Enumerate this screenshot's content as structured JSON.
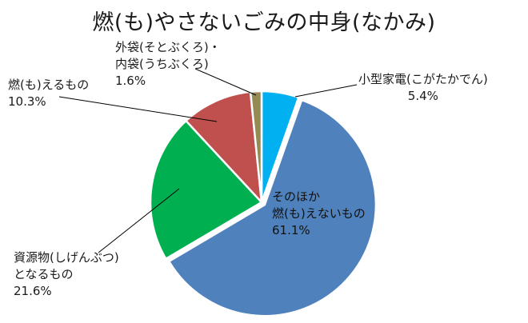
{
  "chart_data": {
    "type": "pie",
    "title": "燃(も)やさないごみの中身(なかみ)",
    "slices": [
      {
        "label_lines": [
          "小型家電(こがたかでん)"
        ],
        "value": 5.4,
        "value_label": "5.4%",
        "color": "#00b0f0"
      },
      {
        "label_lines": [
          "そのほか",
          "燃(も)えないもの"
        ],
        "value": 61.1,
        "value_label": "61.1%",
        "color": "#4f81bd"
      },
      {
        "label_lines": [
          "資源物(しげんぶつ)",
          "となるもの"
        ],
        "value": 21.6,
        "value_label": "21.6%",
        "color": "#00b050"
      },
      {
        "label_lines": [
          "燃(も)えるもの"
        ],
        "value": 10.3,
        "value_label": "10.3%",
        "color": "#c0504d"
      },
      {
        "label_lines": [
          "外袋(そとぶくろ)・",
          "内袋(うちぶくろ)"
        ],
        "value": 1.6,
        "value_label": "1.6%",
        "color": "#948a54"
      }
    ]
  }
}
